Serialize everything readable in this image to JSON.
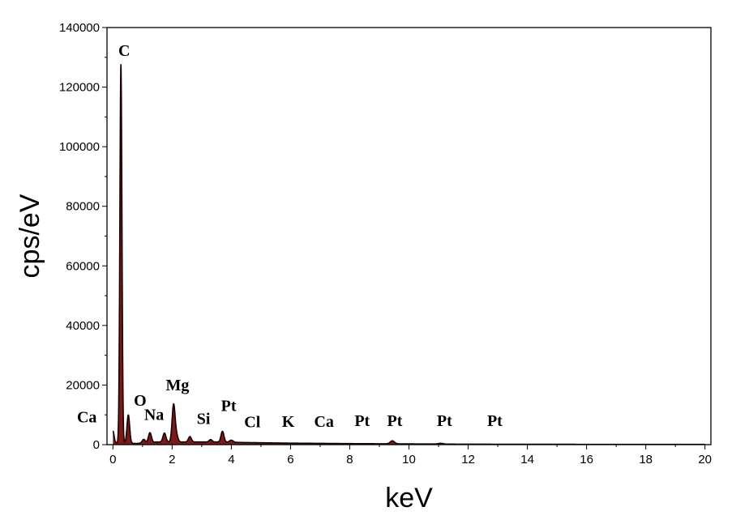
{
  "chart_data": {
    "type": "line",
    "xlabel": "keV",
    "ylabel": "cps/eV",
    "xlim": [
      -0.2,
      20.2
    ],
    "ylim": [
      0,
      140000
    ],
    "x_ticks": [
      0,
      2,
      4,
      6,
      8,
      10,
      12,
      14,
      16,
      18,
      20
    ],
    "y_ticks": [
      0,
      20000,
      40000,
      60000,
      80000,
      100000,
      120000,
      140000
    ],
    "grid": false,
    "legend": "none",
    "line_color": "#1a0000",
    "fill_color": "#7a1a1a",
    "baseline": [
      [
        0.0,
        600
      ],
      [
        0.8,
        400
      ],
      [
        1.5,
        900
      ],
      [
        2.4,
        900
      ],
      [
        3.5,
        900
      ],
      [
        4.5,
        700
      ],
      [
        6,
        500
      ],
      [
        8,
        350
      ],
      [
        10,
        250
      ],
      [
        12,
        150
      ],
      [
        16,
        100
      ],
      [
        20,
        80
      ]
    ],
    "peaks": [
      {
        "x": 0.0,
        "height": 4000,
        "width": 0.04
      },
      {
        "x": 0.27,
        "height": 127000,
        "width": 0.035
      },
      {
        "x": 0.52,
        "height": 9500,
        "width": 0.045
      },
      {
        "x": 1.04,
        "height": 1200,
        "width": 0.05
      },
      {
        "x": 1.25,
        "height": 3300,
        "width": 0.05
      },
      {
        "x": 1.74,
        "height": 3000,
        "width": 0.05
      },
      {
        "x": 2.05,
        "height": 12500,
        "width": 0.05
      },
      {
        "x": 2.15,
        "height": 2000,
        "width": 0.05
      },
      {
        "x": 2.6,
        "height": 1800,
        "width": 0.05
      },
      {
        "x": 3.3,
        "height": 800,
        "width": 0.05
      },
      {
        "x": 3.7,
        "height": 3600,
        "width": 0.05
      },
      {
        "x": 4.0,
        "height": 700,
        "width": 0.06
      },
      {
        "x": 9.44,
        "height": 1000,
        "width": 0.07
      },
      {
        "x": 11.07,
        "height": 250,
        "width": 0.08
      }
    ],
    "annotations": [
      {
        "text": "C",
        "x": 0.38,
        "y": 130500
      },
      {
        "text": "Ca",
        "x": -0.88,
        "y": 7500
      },
      {
        "text": "O",
        "x": 0.92,
        "y": 13000
      },
      {
        "text": "Na",
        "x": 1.39,
        "y": 8300
      },
      {
        "text": "Mg",
        "x": 2.18,
        "y": 18200
      },
      {
        "text": "Si",
        "x": 3.06,
        "y": 6900
      },
      {
        "text": "Pt",
        "x": 3.91,
        "y": 11300
      },
      {
        "text": "Cl",
        "x": 4.71,
        "y": 5800
      },
      {
        "text": "K",
        "x": 5.92,
        "y": 6000
      },
      {
        "text": "Ca",
        "x": 7.13,
        "y": 6000
      },
      {
        "text": "Pt",
        "x": 8.42,
        "y": 6200
      },
      {
        "text": "Pt",
        "x": 9.52,
        "y": 6200
      },
      {
        "text": "Pt",
        "x": 11.2,
        "y": 6200
      },
      {
        "text": "Pt",
        "x": 12.9,
        "y": 6200
      }
    ]
  }
}
